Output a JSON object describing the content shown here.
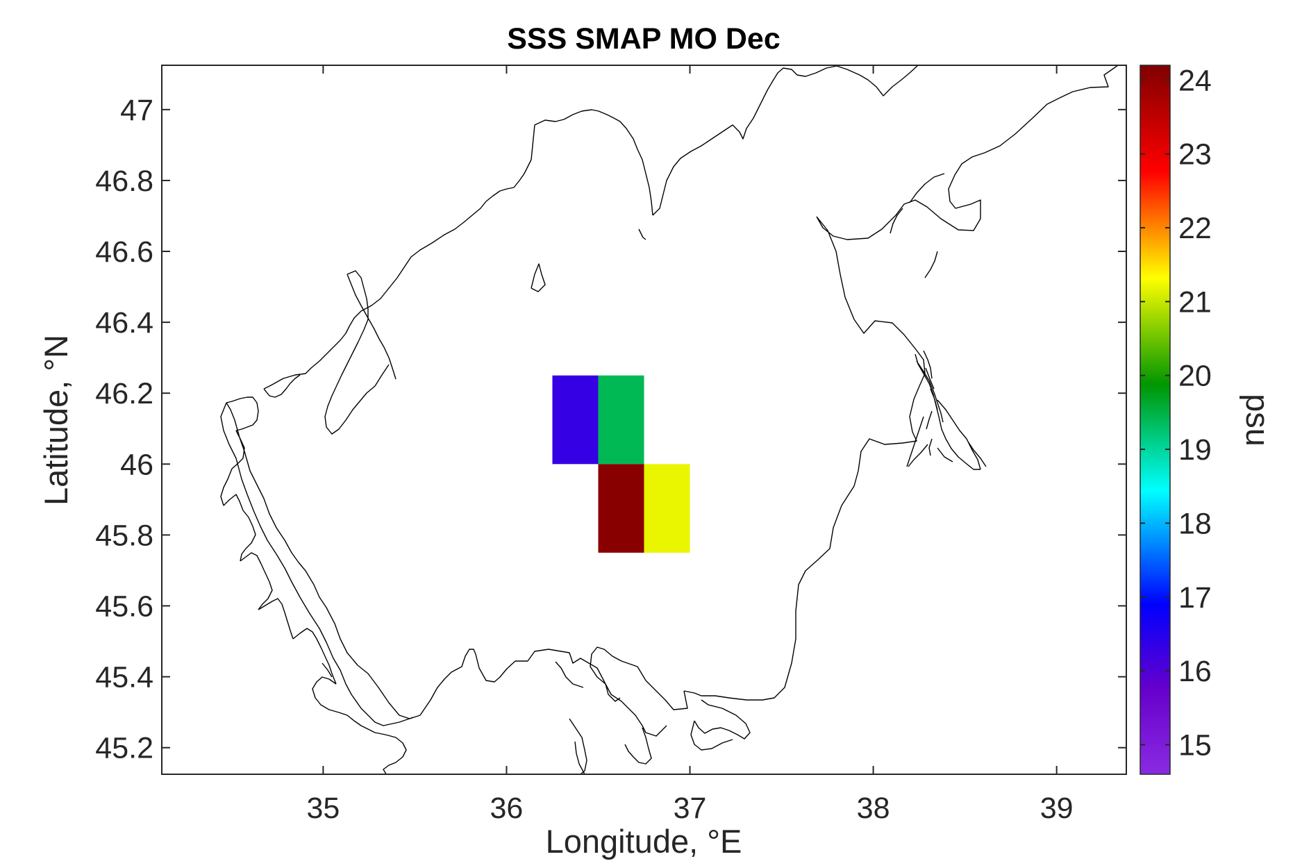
{
  "chart_data": {
    "type": "heatmap",
    "title": "SSS SMAP MO Dec",
    "xlabel": "Longitude, °E",
    "ylabel": "Latitude, °N",
    "xlim": [
      34.12,
      39.38
    ],
    "ylim": [
      45.125,
      47.125
    ],
    "x_ticks": [
      35,
      36,
      37,
      38,
      39
    ],
    "y_ticks": [
      45.2,
      45.4,
      45.6,
      45.8,
      46,
      46.2,
      46.4,
      46.6,
      46.8,
      47
    ],
    "x_tick_labels": [
      "35",
      "36",
      "37",
      "38",
      "39"
    ],
    "y_tick_labels": [
      "45.2",
      "45.4",
      "45.6",
      "45.8",
      "46",
      "46.2",
      "46.4",
      "46.6",
      "46.8",
      "47"
    ],
    "grid": false,
    "cells": [
      {
        "lon_min": 36.25,
        "lon_max": 36.5,
        "lat_min": 46.0,
        "lat_max": 46.25,
        "value": 16.3
      },
      {
        "lon_min": 36.5,
        "lon_max": 36.75,
        "lat_min": 46.0,
        "lat_max": 46.25,
        "value": 19.4
      },
      {
        "lon_min": 36.5,
        "lon_max": 36.75,
        "lat_min": 45.75,
        "lat_max": 46.0,
        "value": 24.1
      },
      {
        "lon_min": 36.75,
        "lon_max": 37.0,
        "lat_min": 45.75,
        "lat_max": 46.0,
        "value": 21.2
      }
    ],
    "colorbar": {
      "label": "psu",
      "range": [
        14.6,
        24.2
      ],
      "ticks": [
        15,
        16,
        17,
        18,
        19,
        20,
        21,
        22,
        23,
        24
      ],
      "tick_labels": [
        "15",
        "16",
        "17",
        "18",
        "19",
        "20",
        "21",
        "22",
        "23",
        "24"
      ],
      "colormap": "jet-like with purple low end and dark red high end"
    },
    "coastline": "Sea of Azov outline (black line)"
  }
}
